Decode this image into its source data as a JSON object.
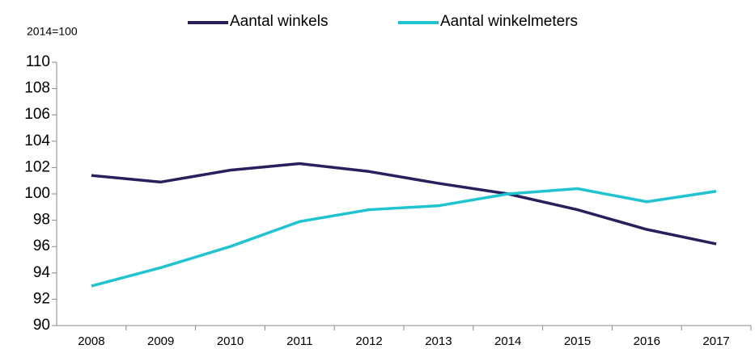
{
  "chart_data": {
    "type": "line",
    "y_axis_label": "2014=100",
    "categories": [
      "2008",
      "2009",
      "2010",
      "2011",
      "2012",
      "2013",
      "2014",
      "2015",
      "2016",
      "2017"
    ],
    "series": [
      {
        "name": "Aantal winkels",
        "color": "#2a1f5c",
        "values": [
          101.4,
          100.9,
          101.8,
          102.3,
          101.7,
          100.8,
          100,
          98.8,
          97.3,
          96.2
        ]
      },
      {
        "name": "Aantal winkelmeters",
        "color": "#1fc4d0",
        "values": [
          93.0,
          94.4,
          96.0,
          97.9,
          98.8,
          99.1,
          100,
          100.4,
          99.4,
          100.2
        ]
      }
    ],
    "ylim": [
      90,
      110
    ],
    "yticks": [
      90,
      92,
      94,
      96,
      98,
      100,
      102,
      104,
      106,
      108,
      110
    ],
    "grid": false,
    "legend": "top"
  }
}
